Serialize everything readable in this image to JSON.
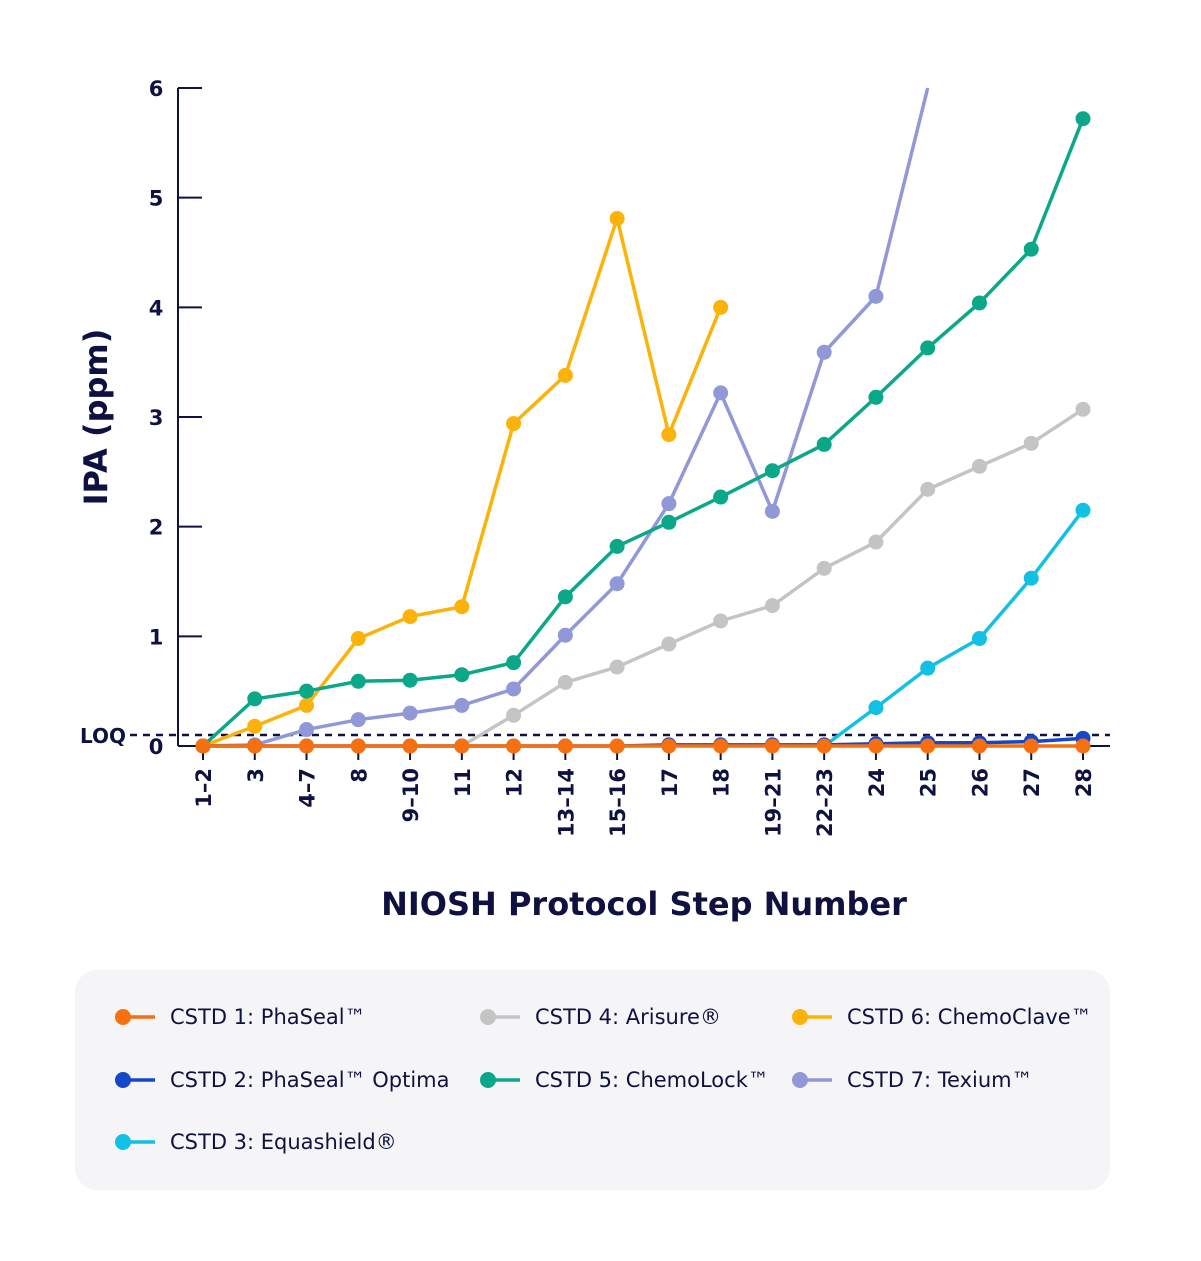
{
  "chart_data": {
    "type": "line",
    "title": "",
    "xlabel": "NIOSH Protocol Step Number",
    "ylabel": "IPA (ppm)",
    "ylim": [
      0,
      6
    ],
    "yticks": [
      "0",
      "1",
      "2",
      "3",
      "4",
      "5",
      "6"
    ],
    "loq": {
      "label": "LOQ",
      "value": 0.1
    },
    "categories": [
      "1–2",
      "3",
      "4–7",
      "8",
      "9–10",
      "11",
      "12",
      "13–14",
      "15–16",
      "17",
      "18",
      "19–21",
      "22–23",
      "24",
      "25",
      "26",
      "27",
      "28"
    ],
    "legend_placement": "bottom",
    "series": [
      {
        "name": "CSTD 1: PhaSeal™",
        "color": "#f7700f",
        "values": [
          0,
          0,
          0,
          0,
          0,
          0,
          0,
          0,
          0,
          0,
          0,
          0,
          0,
          0,
          0,
          0,
          0,
          0
        ]
      },
      {
        "name": "CSTD 2: PhaSeal™ Optima",
        "color": "#1547c9",
        "values": [
          0,
          0,
          0,
          0,
          0,
          0,
          0,
          0,
          0,
          0.01,
          0.01,
          0.01,
          0.01,
          0.02,
          0.03,
          0.03,
          0.04,
          0.07
        ]
      },
      {
        "name": "CSTD 3: Equashield®",
        "color": "#12c0e6",
        "values": [
          null,
          null,
          null,
          null,
          null,
          null,
          null,
          null,
          null,
          null,
          null,
          null,
          0,
          0.35,
          0.71,
          0.98,
          1.53,
          2.15
        ]
      },
      {
        "name": "CSTD 4: Arisure®",
        "color": "#c4c4c4",
        "values": [
          null,
          null,
          null,
          null,
          null,
          0,
          0.28,
          0.58,
          0.72,
          0.93,
          1.14,
          1.28,
          1.62,
          1.86,
          2.34,
          2.55,
          2.76,
          3.07
        ]
      },
      {
        "name": "CSTD 5: ChemoLock™",
        "color": "#0aa888",
        "values": [
          0,
          0.43,
          0.5,
          0.59,
          0.6,
          0.65,
          0.76,
          1.36,
          1.82,
          2.04,
          2.27,
          2.51,
          2.75,
          3.18,
          3.63,
          4.04,
          4.53,
          5.72
        ]
      },
      {
        "name": "CSTD 6: ChemoClave™",
        "color": "#fbb30a",
        "values": [
          0,
          0.18,
          0.37,
          0.98,
          1.18,
          1.27,
          2.94,
          3.38,
          4.81,
          2.84,
          4.0,
          null,
          null,
          null,
          null,
          null,
          null,
          null
        ]
      },
      {
        "name": "CSTD 7: Texium™",
        "color": "#9098d8",
        "values": [
          0,
          0.01,
          0.15,
          0.24,
          0.3,
          0.37,
          0.52,
          1.01,
          1.48,
          2.21,
          3.22,
          2.14,
          3.59,
          4.1,
          6.0,
          null,
          null,
          null
        ]
      }
    ]
  }
}
